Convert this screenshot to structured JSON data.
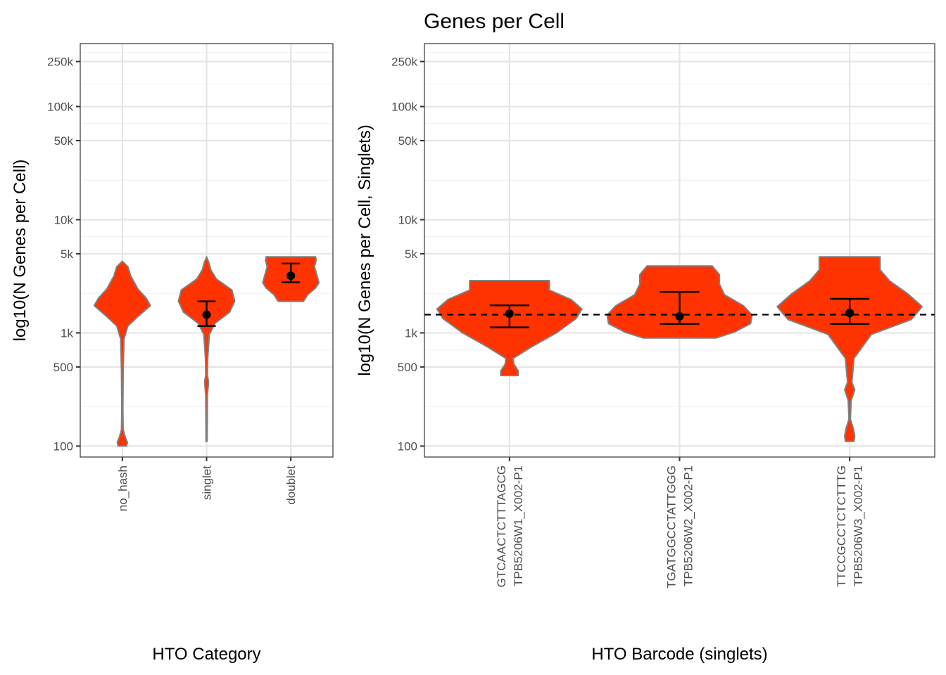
{
  "title": "Genes per Cell",
  "colors": {
    "violin_fill": "#ff3300",
    "violin_stroke": "#808080",
    "error_bar": "#000000",
    "grid": "#e5e5e5",
    "border": "#333333"
  },
  "chart_data": [
    {
      "type": "violin",
      "xlabel": "HTO Category",
      "ylabel": "log10(N Genes per Cell)",
      "y_scale": "log10",
      "ylim": [
        80,
        360000
      ],
      "y_ticks": [
        100,
        500,
        1000,
        5000,
        10000,
        50000,
        100000,
        250000
      ],
      "y_tick_labels": [
        "100",
        "500",
        "1k",
        "5k",
        "10k",
        "50k",
        "100k",
        "250k"
      ],
      "grid": true,
      "categories": [
        "no_hash",
        "singlet",
        "doublet"
      ],
      "points": [
        {
          "category": "no_hash",
          "mean": null,
          "lower": null,
          "upper": null,
          "min": 100,
          "max": 4300
        },
        {
          "category": "singlet",
          "mean": 1450,
          "lower": 1150,
          "upper": 1900,
          "min": 110,
          "max": 4700
        },
        {
          "category": "doublet",
          "mean": 3200,
          "lower": 2800,
          "upper": 4100,
          "min": 1900,
          "max": 4700
        }
      ]
    },
    {
      "type": "violin",
      "xlabel": "HTO Barcode (singlets)",
      "ylabel": "log10(N Genes per Cell, Singlets)",
      "y_scale": "log10",
      "ylim": [
        80,
        360000
      ],
      "y_ticks": [
        100,
        500,
        1000,
        5000,
        10000,
        50000,
        100000,
        250000
      ],
      "y_tick_labels": [
        "100",
        "500",
        "1k",
        "5k",
        "10k",
        "50k",
        "100k",
        "250k"
      ],
      "grid": true,
      "reference_line": 1450,
      "categories": [
        [
          "GTCAACTCTTTAGCG",
          "TPB5206W1_X002-P1"
        ],
        [
          "TGATGGCCTATTGGG",
          "TPB5206W2_X002-P1"
        ],
        [
          "TTCCGCCTCTCTTTG",
          "TPB5206W3_X002-P1"
        ]
      ],
      "points": [
        {
          "category": "GTCAACTCTTTAGCG TPB5206W1_X002-P1",
          "mean": 1480,
          "lower": 1120,
          "upper": 1750,
          "min": 420,
          "max": 2900
        },
        {
          "category": "TGATGGCCTATTGGG TPB5206W2_X002-P1",
          "mean": 1400,
          "lower": 1200,
          "upper": 2300,
          "min": 900,
          "max": 3900
        },
        {
          "category": "TTCCGCCTCTCTTTG TPB5206W3_X002-P1",
          "mean": 1500,
          "lower": 1200,
          "upper": 2000,
          "min": 110,
          "max": 4700
        }
      ]
    }
  ]
}
